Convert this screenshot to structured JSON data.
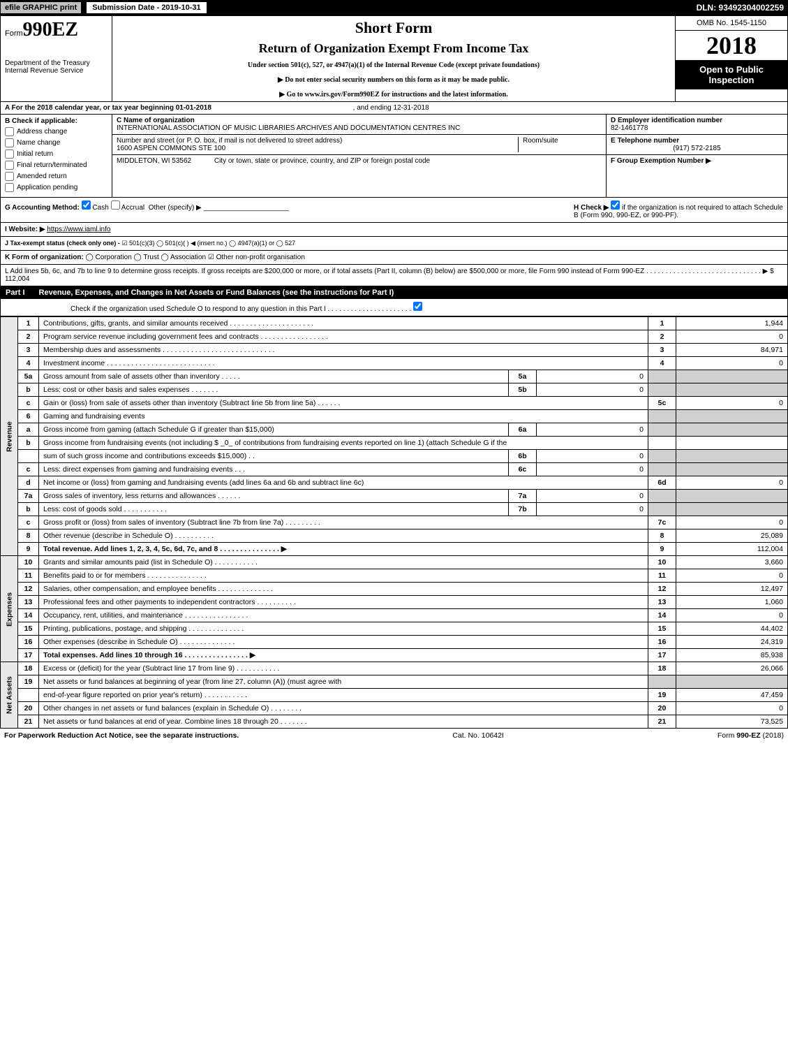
{
  "topbar": {
    "efile_label": "efile GRAPHIC print",
    "submission_date_label": "Submission Date - 2019-10-31",
    "dln": "DLN: 93492304002259"
  },
  "header": {
    "form_prefix": "Form",
    "form_number": "990EZ",
    "dept": "Department of the Treasury",
    "irs": "Internal Revenue Service",
    "short_form": "Short Form",
    "title": "Return of Organization Exempt From Income Tax",
    "under": "Under section 501(c), 527, or 4947(a)(1) of the Internal Revenue Code (except private foundations)",
    "note1": "▶ Do not enter social security numbers on this form as it may be made public.",
    "note2": "▶ Go to www.irs.gov/Form990EZ for instructions and the latest information.",
    "omb": "OMB No. 1545-1150",
    "year": "2018",
    "open": "Open to Public Inspection"
  },
  "section_a": {
    "line_a": "A  For the 2018 calendar year, or tax year beginning 01-01-2018",
    "line_a_end": ", and ending 12-31-2018",
    "b_label": "B  Check if applicable:",
    "checks": [
      {
        "label": "Address change",
        "checked": false
      },
      {
        "label": "Name change",
        "checked": false
      },
      {
        "label": "Initial return",
        "checked": false
      },
      {
        "label": "Final return/terminated",
        "checked": false
      },
      {
        "label": "Amended return",
        "checked": false
      },
      {
        "label": "Application pending",
        "checked": false
      }
    ],
    "c_label": "C Name of organization",
    "org_name": "INTERNATIONAL ASSOCIATION OF MUSIC LIBRARIES ARCHIVES AND DOCUMENTATION CENTRES INC",
    "street_label": "Number and street (or P. O. box, if mail is not delivered to street address)",
    "street": "1600 ASPEN COMMONS STE 100",
    "room_label": "Room/suite",
    "city_label": "City or town, state or province, country, and ZIP or foreign postal code",
    "city": "MIDDLETON, WI  53562",
    "d_label": "D Employer identification number",
    "ein": "82-1461778",
    "e_label": "E Telephone number",
    "phone": "(917) 572-2185",
    "f_label": "F Group Exemption Number ▶"
  },
  "g_row": {
    "label": "G Accounting Method:",
    "cash": "Cash",
    "accrual": "Accrual",
    "other": "Other (specify) ▶",
    "h_label": "H  Check ▶",
    "h_text": "if the organization is not required to attach Schedule B (Form 990, 990-EZ, or 990-PF)."
  },
  "i_row": {
    "label": "I Website: ▶",
    "url": "https://www.iaml.info"
  },
  "j_row": {
    "label": "J Tax-exempt status (check only one) -",
    "opts": "☑ 501(c)(3)  ◯ 501(c)(  ) ◀ (insert no.)  ◯ 4947(a)(1) or  ◯ 527"
  },
  "k_row": {
    "label": "K Form of organization:",
    "opts": "◯ Corporation   ◯ Trust   ◯ Association   ☑ Other non-profit organisation"
  },
  "l_row": {
    "text": "L Add lines 5b, 6c, and 7b to line 9 to determine gross receipts. If gross receipts are $200,000 or more, or if total assets (Part II, column (B) below) are $500,000 or more, file Form 990 instead of Form 990-EZ  . . . . . . . . . . . . . . . . . . . . . . . . . . . . . . ▶ $ 112,004"
  },
  "part1": {
    "header_label": "Part I",
    "header_title": "Revenue, Expenses, and Changes in Net Assets or Fund Balances (see the instructions for Part I)",
    "check_text": "Check if the organization used Schedule O to respond to any question in this Part I . . . . . . . . . . . . . . . . . . . . . .",
    "check_checked": true
  },
  "revenue_label": "Revenue",
  "expenses_label": "Expenses",
  "netassets_label": "Net Assets",
  "lines": [
    {
      "no": "1",
      "desc": "Contributions, gifts, grants, and similar amounts received  . . . . . . . . . . . . . . . . . . . . .",
      "num": "1",
      "amt": "1,944"
    },
    {
      "no": "2",
      "desc": "Program service revenue including government fees and contracts  . . . . . . . . . . . . . . . . .",
      "num": "2",
      "amt": "0"
    },
    {
      "no": "3",
      "desc": "Membership dues and assessments  . . . . . . . . . . . . . . . . . . . . . . . . . . . .",
      "num": "3",
      "amt": "84,971"
    },
    {
      "no": "4",
      "desc": "Investment income  . . . . . . . . . . . . . . . . . . . . . . . . . . .",
      "num": "4",
      "amt": "0"
    },
    {
      "no": "5a",
      "desc": "Gross amount from sale of assets other than inventory  . . . . .",
      "sub": "5a",
      "subamt": "0"
    },
    {
      "no": "b",
      "desc": "Less: cost or other basis and sales expenses  . . . . . . .",
      "sub": "5b",
      "subamt": "0"
    },
    {
      "no": "c",
      "desc": "Gain or (loss) from sale of assets other than inventory (Subtract line 5b from line 5a)        . . . . . .",
      "num": "5c",
      "amt": "0"
    },
    {
      "no": "6",
      "desc": "Gaming and fundraising events",
      "shade": true
    },
    {
      "no": "a",
      "desc": "Gross income from gaming (attach Schedule G if greater than $15,000)",
      "sub": "6a",
      "subamt": "0"
    },
    {
      "no": "b",
      "desc": "Gross income from fundraising events (not including $ _0_            of contributions from fundraising events reported on line 1) (attach Schedule G if the"
    },
    {
      "no": "",
      "desc": "sum of such gross income and contributions exceeds $15,000)        . .",
      "sub": "6b",
      "subamt": "0"
    },
    {
      "no": "c",
      "desc": "Less: direct expenses from gaming and fundraising events        . . .",
      "sub": "6c",
      "subamt": "0"
    },
    {
      "no": "d",
      "desc": "Net income or (loss) from gaming and fundraising events (add lines 6a and 6b and subtract line 6c)",
      "num": "6d",
      "amt": "0"
    },
    {
      "no": "7a",
      "desc": "Gross sales of inventory, less returns and allowances        . . . . . .",
      "sub": "7a",
      "subamt": "0"
    },
    {
      "no": "b",
      "desc": "Less: cost of goods sold                . . . . . . . . . . .",
      "sub": "7b",
      "subamt": "0"
    },
    {
      "no": "c",
      "desc": "Gross profit or (loss) from sales of inventory (Subtract line 7b from line 7a)        . . . . . . . . .",
      "num": "7c",
      "amt": "0"
    },
    {
      "no": "8",
      "desc": "Other revenue (describe in Schedule O)                . . . . . . . . . .",
      "num": "8",
      "amt": "25,089"
    },
    {
      "no": "9",
      "desc": "Total revenue. Add lines 1, 2, 3, 4, 5c, 6d, 7c, and 8        . . . . . . . . . . . . . . . ▶",
      "num": "9",
      "amt": "112,004",
      "bold": true
    }
  ],
  "exp_lines": [
    {
      "no": "10",
      "desc": "Grants and similar amounts paid (list in Schedule O)        . . . . . . . . . . .",
      "num": "10",
      "amt": "3,660"
    },
    {
      "no": "11",
      "desc": "Benefits paid to or for members        . . . . . . . . . . . . . . .",
      "num": "11",
      "amt": "0"
    },
    {
      "no": "12",
      "desc": "Salaries, other compensation, and employee benefits        . . . . . . . . . . . . . .",
      "num": "12",
      "amt": "12,497"
    },
    {
      "no": "13",
      "desc": "Professional fees and other payments to independent contractors        . . . . . . . . . .",
      "num": "13",
      "amt": "1,060"
    },
    {
      "no": "14",
      "desc": "Occupancy, rent, utilities, and maintenance        . . . . . . . . . . . . . . . .",
      "num": "14",
      "amt": "0"
    },
    {
      "no": "15",
      "desc": "Printing, publications, postage, and shipping        . . . . . . . . . . . . . .",
      "num": "15",
      "amt": "44,402"
    },
    {
      "no": "16",
      "desc": "Other expenses (describe in Schedule O)        . . . . . . . . . . . . . .",
      "num": "16",
      "amt": "24,319"
    },
    {
      "no": "17",
      "desc": "Total expenses. Add lines 10 through 16        . . . . . . . . . . . . . . . . ▶",
      "num": "17",
      "amt": "85,938",
      "bold": true
    }
  ],
  "net_lines": [
    {
      "no": "18",
      "desc": "Excess or (deficit) for the year (Subtract line 17 from line 9)        . . . . . . . . . . .",
      "num": "18",
      "amt": "26,066"
    },
    {
      "no": "19",
      "desc": "Net assets or fund balances at beginning of year (from line 27, column (A)) (must agree with",
      "shade": true
    },
    {
      "no": "",
      "desc": "end-of-year figure reported on prior year's return)        . . . . . . . . . . .",
      "num": "19",
      "amt": "47,459"
    },
    {
      "no": "20",
      "desc": "Other changes in net assets or fund balances (explain in Schedule O)        . . . . . . . .",
      "num": "20",
      "amt": "0"
    },
    {
      "no": "21",
      "desc": "Net assets or fund balances at end of year. Combine lines 18 through 20        . . . . . . .",
      "num": "21",
      "amt": "73,525"
    }
  ],
  "footer": {
    "left": "For Paperwork Reduction Act Notice, see the separate instructions.",
    "mid": "Cat. No. 10642I",
    "right": "Form 990-EZ (2018)"
  }
}
